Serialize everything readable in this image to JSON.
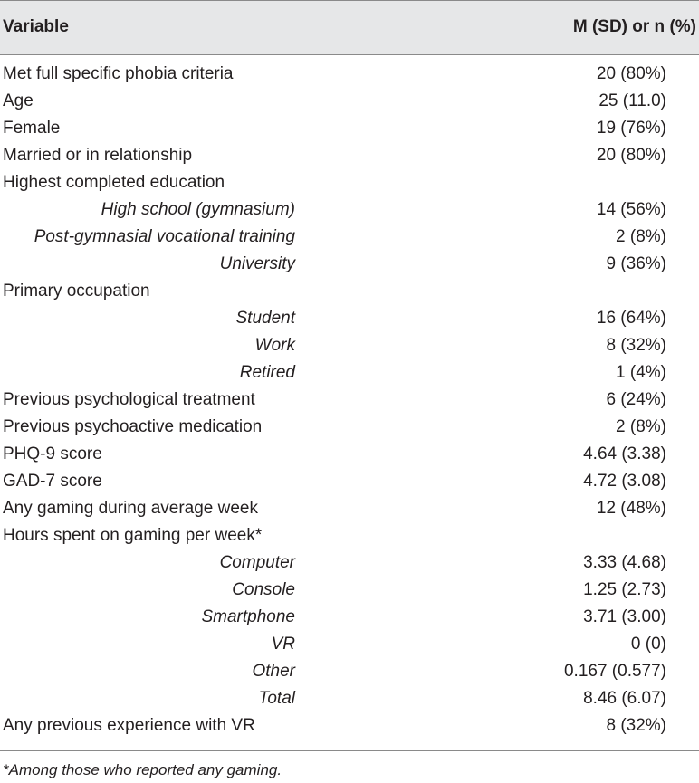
{
  "header": {
    "variable": "Variable",
    "value": "M (SD) or n (%)"
  },
  "rows": [
    {
      "label": "Met full specific phobia criteria",
      "value": "20 (80%)",
      "sub": false
    },
    {
      "label": "Age",
      "value": "25 (11.0)",
      "sub": false
    },
    {
      "label": "Female",
      "value": "19 (76%)",
      "sub": false
    },
    {
      "label": "Married or in relationship",
      "value": "20 (80%)",
      "sub": false
    },
    {
      "label": "Highest completed education",
      "value": "",
      "sub": false
    },
    {
      "label": "High school (gymnasium)",
      "value": "14 (56%)",
      "sub": true
    },
    {
      "label": "Post-gymnasial vocational training",
      "value": "2 (8%)",
      "sub": true
    },
    {
      "label": "University",
      "value": "9 (36%)",
      "sub": true
    },
    {
      "label": "Primary occupation",
      "value": "",
      "sub": false
    },
    {
      "label": "Student",
      "value": "16 (64%)",
      "sub": true
    },
    {
      "label": "Work",
      "value": "8 (32%)",
      "sub": true
    },
    {
      "label": "Retired",
      "value": "1 (4%)",
      "sub": true
    },
    {
      "label": "Previous psychological treatment",
      "value": "6 (24%)",
      "sub": false
    },
    {
      "label": "Previous psychoactive medication",
      "value": "2 (8%)",
      "sub": false
    },
    {
      "label": "PHQ-9 score",
      "value": "4.64 (3.38)",
      "sub": false
    },
    {
      "label": "GAD-7 score",
      "value": "4.72 (3.08)",
      "sub": false
    },
    {
      "label": "Any gaming during average week",
      "value": "12 (48%)",
      "sub": false
    },
    {
      "label": "Hours spent on gaming per week*",
      "value": "",
      "sub": false
    },
    {
      "label": "Computer",
      "value": "3.33 (4.68)",
      "sub": true
    },
    {
      "label": "Console",
      "value": "1.25 (2.73)",
      "sub": true
    },
    {
      "label": "Smartphone",
      "value": "3.71 (3.00)",
      "sub": true
    },
    {
      "label": "VR",
      "value": "0 (0)",
      "sub": true
    },
    {
      "label": "Other",
      "value": "0.167 (0.577)",
      "sub": true
    },
    {
      "label": "Total",
      "value": "8.46 (6.07)",
      "sub": true
    },
    {
      "label": "Any previous experience with VR",
      "value": "8 (32%)",
      "sub": false
    }
  ],
  "footnote": "*Among those who reported any gaming."
}
